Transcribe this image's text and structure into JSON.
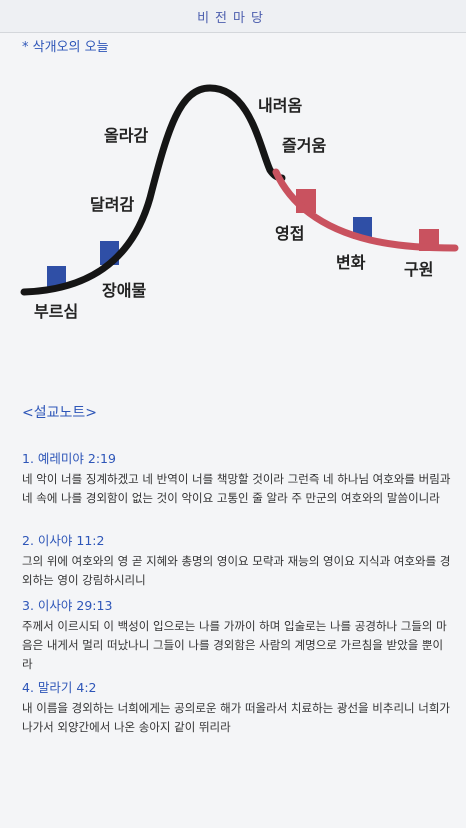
{
  "header": {
    "title": "비전마당"
  },
  "subtitle": "* 삭개오의 오늘",
  "diagram": {
    "stages": {
      "call": "부르심",
      "run": "달려감",
      "obstacle": "장애물",
      "climb": "올라감",
      "descend": "내려옴",
      "joy": "즐거움",
      "welcome": "영접",
      "change": "변화",
      "salvation": "구원"
    },
    "colors": {
      "curve_start": "#151515",
      "curve_end": "#c9525f",
      "marker_blue": "#2f4fa6",
      "marker_red": "#c9525f"
    }
  },
  "notes": {
    "title": "<설교노트>",
    "verses": [
      {
        "ref": "1. 예레미야 2:19",
        "text": "네 악이 너를 징계하겠고 네 반역이 너를 책망할 것이라 그런즉 네 하나님 여호와를 버림과 네 속에 나를 경외함이 없는 것이 악이요 고통인 줄 알라 주 만군의 여호와의 말씀이니라"
      },
      {
        "ref": "2. 이사야 11:2",
        "text": "그의 위에 여호와의 영 곧 지혜와 총명의 영이요 모략과 재능의 영이요 지식과 여호와를 경외하는 영이 강림하시리니"
      },
      {
        "ref": "3. 이사야 29:13",
        "text": "주께서 이르시되 이 백성이 입으로는 나를 가까이 하며 입술로는 나를 공경하나 그들의 마음은 내게서 멀리 떠났나니 그들이 나를 경외함은 사람의 계명으로 가르침을 받았을 뿐이라"
      },
      {
        "ref": "4. 말라기 4:2",
        "text": "내 이름을 경외하는 너희에게는 공의로운 해가 떠올라서 치료하는 광선을 비추리니 너희가 나가서 외양간에서 나온 송아지 같이 뛰리라"
      }
    ]
  }
}
